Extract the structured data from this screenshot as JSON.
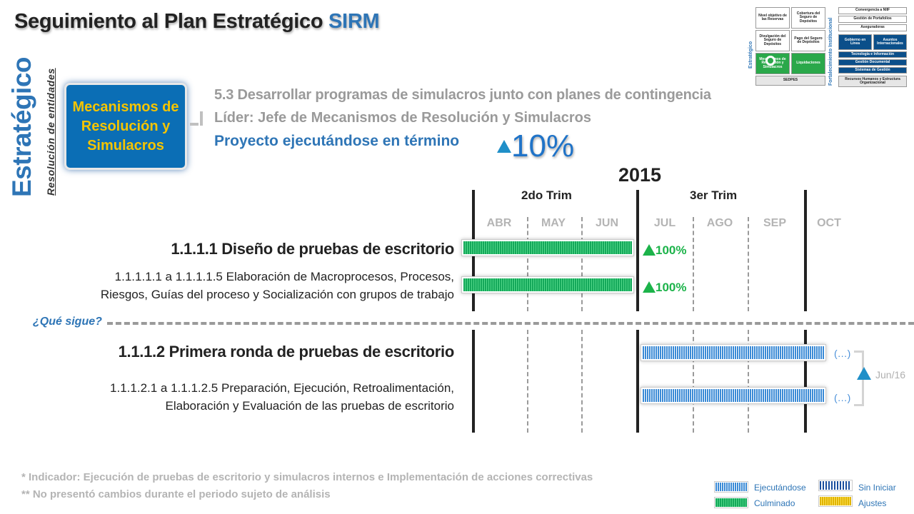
{
  "title": {
    "main": "Seguimiento al Plan Estratégico ",
    "accent": "SIRM"
  },
  "sidebar": {
    "vertical_title": "Estratégico",
    "vertical_subtitle": "Resolución de entidades"
  },
  "mechanism_box": {
    "label": "Mecanismos de Resolución y Simulacros"
  },
  "description": {
    "line1": "5.3 Desarrollar programas de simulacros junto con planes de contingencia",
    "line2": "Líder: Jefe de Mecanismos de Resolución y Simulacros",
    "line3": "Proyecto ejecutándose en término",
    "percentage": "10%"
  },
  "timeline": {
    "year": "2015",
    "quarters": [
      "2do Trim",
      "3er Trim"
    ],
    "months": [
      "ABR",
      "MAY",
      "JUN",
      "JUL",
      "AGO",
      "SEP",
      "OCT"
    ]
  },
  "tasks": [
    {
      "title": "1.1.1.1 Diseño de pruebas de escritorio",
      "progress_label": "100%",
      "progress": 1.0
    },
    {
      "subtitle_line1": "1.1.1.1.1 a 1.1.1.1.5 Elaboración de Macroprocesos, Procesos,",
      "subtitle_line2": "Riesgos, Guías del proceso y Socialización con grupos de trabajo",
      "progress_label": "100%",
      "progress": 1.0
    },
    {
      "title": "1.1.1.2 Primera ronda de pruebas de escritorio",
      "status_label": "(…)"
    },
    {
      "subtitle_line1": "1.1.1.2.1 a 1.1.1.2.5 Preparación, Ejecución, Retroalimentación,",
      "subtitle_line2": "Elaboración y Evaluación de las pruebas de escritorio",
      "status_label": "(…)"
    }
  ],
  "next": {
    "label": "¿Qué sigue?",
    "target_date": "Jun/16"
  },
  "footnotes": {
    "line1": "* Indicador: Ejecución de pruebas de escritorio y simulacros internos e Implementación de acciones correctivas",
    "line2": "** No presentó cambios durante el periodo sujeto de análisis"
  },
  "legend": {
    "executing": "Ejecutándose",
    "completed": "Culminado",
    "not_started": "Sin Iniciar",
    "adjustments": "Ajustes"
  },
  "mini_diagram": {
    "side_label_left": "Estratégico",
    "side_label_right": "Fortalecimiento Institucional",
    "cells": {
      "c1": "Nivel objetivo de las Reservas",
      "c2": "Cobertura del Seguro de Depósitos",
      "c3": "Divulgación del Seguro de Depósitos",
      "c4": "Pago del Seguro de Depósitos",
      "c5": "Mecanismos de Resolución y Simulacros",
      "c6": "Liquidaciones",
      "c7": "SEDPES",
      "r1": "Convergencia a NIIF",
      "r2": "Gestión de Portafolios",
      "r3": "Aseguradoras",
      "r4": "Gobierno en Línea",
      "r5": "Asuntos Internacionales",
      "r6": "Tecnología e Información",
      "r7": "Gestión Documental",
      "r8": "Sistemas de Gestión",
      "r9": "Recursos Humanos y Estructura Organizacional"
    }
  },
  "colors": {
    "accent": "#2e75b6",
    "box": "#0b6eb5",
    "box_text": "#f5c400",
    "green": "#1cb34a"
  }
}
